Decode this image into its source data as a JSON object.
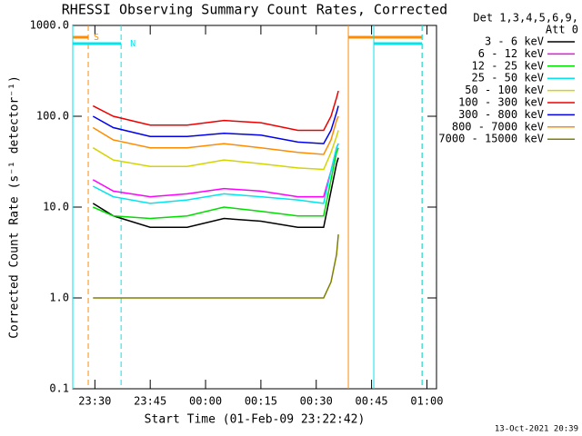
{
  "chart_data": {
    "type": "line",
    "title": "RHESSI Observing Summary Count Rates, Corrected",
    "xlabel": "Start Time (01-Feb-09 23:22:42)",
    "ylabel": "Corrected Count Rate (s⁻¹ detector⁻¹)",
    "legend_header": [
      "Det 1,3,4,5,6,9,",
      "Att 0"
    ],
    "footer": "13-Oct-2021 20:39",
    "log_y": true,
    "xlim": [
      24,
      122.6
    ],
    "xticks": [
      {
        "value": 30,
        "label": "23:30"
      },
      {
        "value": 45,
        "label": "23:45"
      },
      {
        "value": 60,
        "label": "00:00"
      },
      {
        "value": 75,
        "label": "00:15"
      },
      {
        "value": 90,
        "label": "00:30"
      },
      {
        "value": 105,
        "label": "00:45"
      },
      {
        "value": 120,
        "label": "01:00"
      }
    ],
    "ylim": [
      0.1,
      1000
    ],
    "yticks": [
      0.1,
      {
        "value": 1,
        "label": "1.0"
      },
      {
        "value": 10,
        "label": "10.0"
      },
      {
        "value": 100,
        "label": "100.0"
      },
      {
        "value": 1000,
        "label": "1000.0"
      }
    ],
    "x": [
      29.5,
      35,
      45,
      55,
      65,
      75,
      85,
      92,
      94,
      95.5,
      96
    ],
    "series": [
      {
        "name": "3 - 6 keV",
        "color": "#000000",
        "values": [
          11,
          8,
          6,
          6,
          7.5,
          7,
          6,
          6,
          15,
          30,
          35
        ]
      },
      {
        "name": "6 - 12 keV",
        "color": "#ff00ff",
        "values": [
          20,
          15,
          13,
          14,
          16,
          15,
          13,
          13,
          25,
          45,
          50
        ]
      },
      {
        "name": "12 - 25 keV",
        "color": "#00dd00",
        "values": [
          10,
          8,
          7.5,
          8,
          10,
          9,
          8,
          8,
          20,
          40,
          45
        ]
      },
      {
        "name": "25 - 50 keV",
        "color": "#00e5ee",
        "values": [
          17,
          13,
          11,
          12,
          14,
          13,
          12,
          11,
          25,
          45,
          50
        ]
      },
      {
        "name": "50 - 100 keV",
        "color": "#d4d400",
        "values": [
          45,
          33,
          28,
          28,
          33,
          30,
          27,
          26,
          40,
          60,
          70
        ]
      },
      {
        "name": "100 - 300 keV",
        "color": "#ee0000",
        "values": [
          130,
          100,
          80,
          80,
          90,
          85,
          70,
          70,
          100,
          160,
          190
        ]
      },
      {
        "name": "300 - 800 keV",
        "color": "#0000ee",
        "values": [
          100,
          75,
          60,
          60,
          65,
          62,
          52,
          50,
          70,
          110,
          130
        ]
      },
      {
        "name": "800 - 7000 keV",
        "color": "#ff8c00",
        "values": [
          75,
          55,
          45,
          45,
          50,
          45,
          40,
          38,
          55,
          90,
          100
        ]
      },
      {
        "name": "7000 - 15000 keV",
        "color": "#808000",
        "values": [
          1,
          1,
          1,
          1,
          1,
          1,
          1,
          1,
          1.5,
          3,
          5
        ]
      }
    ],
    "flags": [
      {
        "label": "S",
        "color": "#ff8c00",
        "intervals": [
          [
            24,
            28.2
          ],
          [
            98.7,
            118.7
          ]
        ]
      },
      {
        "label": "N",
        "color": "#00e5ee",
        "intervals": [
          [
            24,
            37.1
          ],
          [
            105.6,
            118.7
          ]
        ]
      }
    ]
  }
}
